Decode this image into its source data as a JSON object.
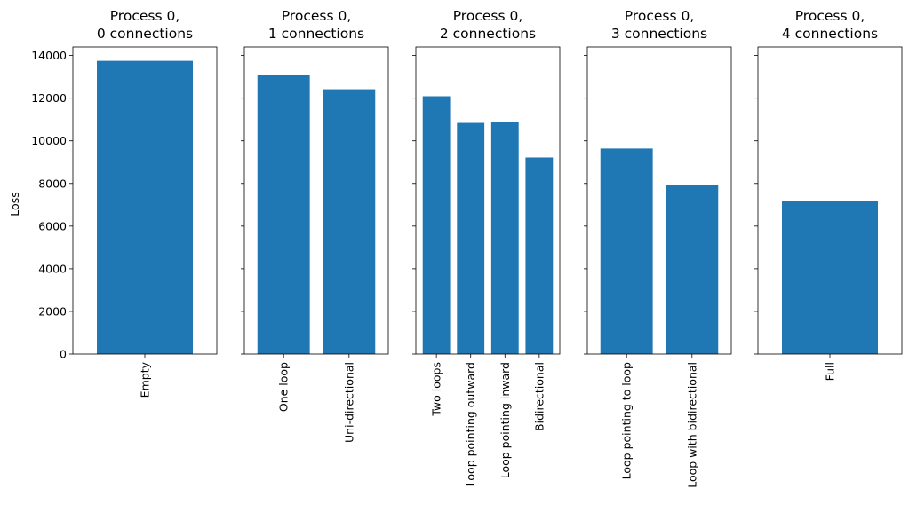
{
  "chart_data": {
    "type": "bar",
    "ylabel": "Loss",
    "ylim": [
      0,
      14400
    ],
    "yticks": [
      0,
      2000,
      4000,
      6000,
      8000,
      10000,
      12000,
      14000
    ],
    "shared_y": true,
    "bar_color": "#1f77b4",
    "subplots": [
      {
        "title": [
          "Process 0,",
          "0 connections"
        ],
        "categories": [
          "Empty"
        ],
        "values": [
          13750
        ]
      },
      {
        "title": [
          "Process 0,",
          "1 connections"
        ],
        "categories": [
          "One loop",
          "Uni-directional"
        ],
        "values": [
          13080,
          12420
        ]
      },
      {
        "title": [
          "Process 0,",
          "2 connections"
        ],
        "categories": [
          "Two loops",
          "Loop pointing outward",
          "Loop pointing inward",
          "Bidirectional"
        ],
        "values": [
          12090,
          10840,
          10870,
          9220
        ]
      },
      {
        "title": [
          "Process 0,",
          "3 connections"
        ],
        "categories": [
          "Loop pointing to loop",
          "Loop with bidirectional"
        ],
        "values": [
          9640,
          7920
        ]
      },
      {
        "title": [
          "Process 0,",
          "4 connections"
        ],
        "categories": [
          "Full"
        ],
        "values": [
          7180
        ]
      }
    ]
  }
}
